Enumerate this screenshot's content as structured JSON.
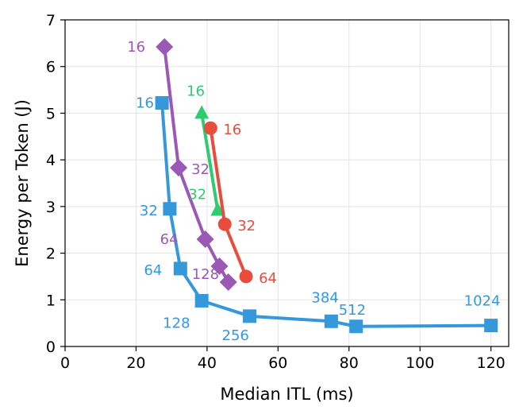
{
  "chart_data": {
    "type": "line",
    "title": "",
    "xlabel": "Median ITL (ms)",
    "ylabel": "Energy per Token (J)",
    "xlim": [
      0,
      125
    ],
    "ylim": [
      0,
      7
    ],
    "xticks": [
      0,
      20,
      40,
      60,
      80,
      100,
      120
    ],
    "yticks": [
      0,
      1,
      2,
      3,
      4,
      5,
      6,
      7
    ],
    "grid": true,
    "series": [
      {
        "name": "blue-squares",
        "color": "#3498db",
        "marker": "square",
        "points": [
          {
            "x": 27.3,
            "y": 5.22,
            "label": "16"
          },
          {
            "x": 29.5,
            "y": 2.95,
            "label": "32"
          },
          {
            "x": 32.5,
            "y": 1.67,
            "label": "64"
          },
          {
            "x": 38.5,
            "y": 0.98,
            "label": "128"
          },
          {
            "x": 52.0,
            "y": 0.65,
            "label": "256"
          },
          {
            "x": 75.0,
            "y": 0.54,
            "label": "384"
          },
          {
            "x": 82.0,
            "y": 0.43,
            "label": "512"
          },
          {
            "x": 120.0,
            "y": 0.45,
            "label": "1024"
          }
        ]
      },
      {
        "name": "purple-diamonds",
        "color": "#9b59b6",
        "marker": "diamond",
        "points": [
          {
            "x": 28.0,
            "y": 6.42,
            "label": "16"
          },
          {
            "x": 32.0,
            "y": 3.83,
            "label": "32"
          },
          {
            "x": 39.5,
            "y": 2.3,
            "label": "64"
          },
          {
            "x": 43.5,
            "y": 1.72,
            "label": ""
          },
          {
            "x": 46.0,
            "y": 1.38,
            "label": "128"
          }
        ]
      },
      {
        "name": "green-triangles",
        "color": "#2ecc71",
        "marker": "triangle",
        "points": [
          {
            "x": 38.5,
            "y": 5.0,
            "label": "16"
          },
          {
            "x": 43.0,
            "y": 2.92,
            "label": "32"
          }
        ]
      },
      {
        "name": "red-circles",
        "color": "#e74c3c",
        "marker": "circle",
        "points": [
          {
            "x": 41.0,
            "y": 4.68,
            "label": "16"
          },
          {
            "x": 45.0,
            "y": 2.62,
            "label": "32"
          },
          {
            "x": 51.0,
            "y": 1.5,
            "label": "64"
          }
        ]
      }
    ]
  }
}
